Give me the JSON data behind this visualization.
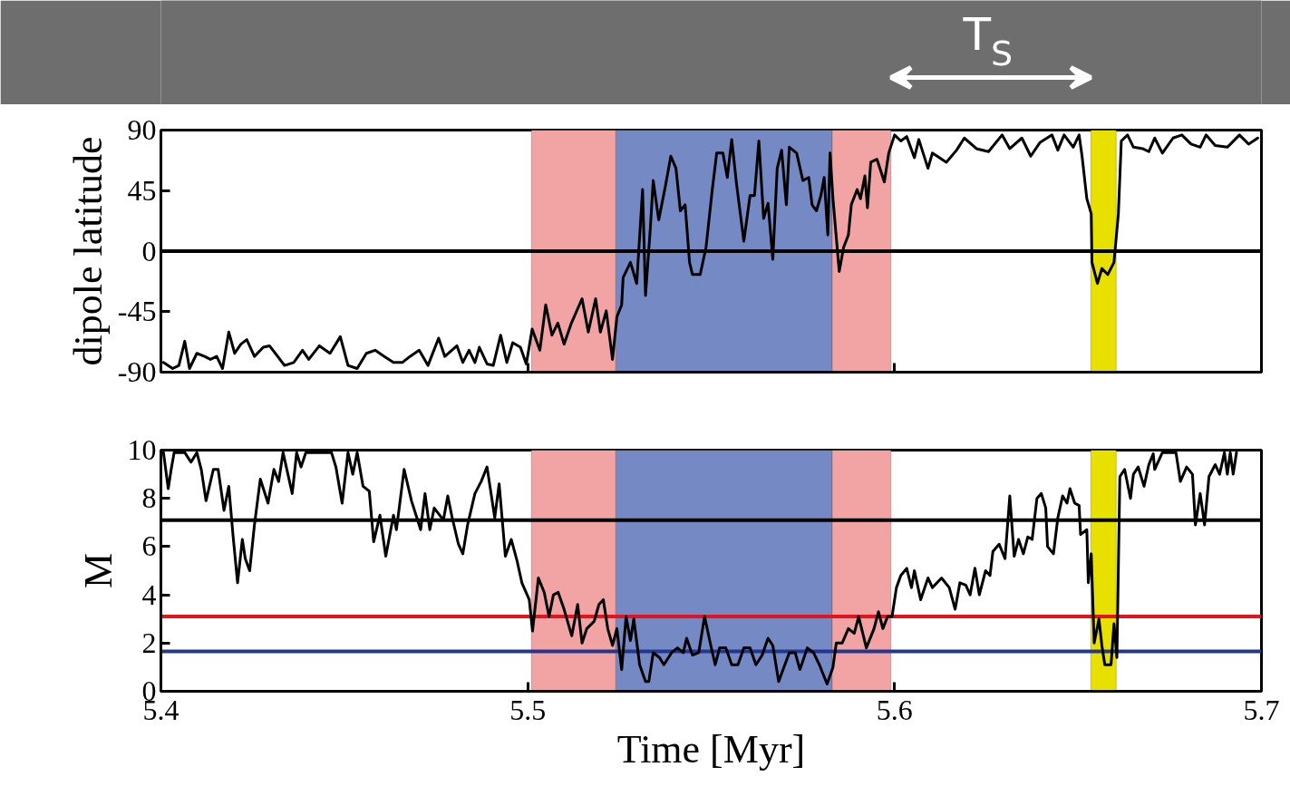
{
  "chart_data": [
    {
      "type": "line",
      "ylabel": "dipole latitude",
      "xlim": [
        5.4,
        5.7
      ],
      "xticks": [
        5.4,
        5.5,
        5.6,
        5.7
      ],
      "ylim": [
        -90,
        90
      ],
      "yticks": [
        -90,
        -45,
        0,
        45,
        90
      ],
      "tick_labels": "y",
      "grid": false,
      "annotations": [
        "T$_{S}$"
      ],
      "ref_lines": [
        {
          "axis": "y",
          "value": 0,
          "color": "#000000"
        }
      ],
      "bands": [
        {
          "axis": "x",
          "from": 5.501,
          "to": 5.524,
          "color": "#f2a3a3"
        },
        {
          "axis": "x",
          "from": 5.524,
          "to": 5.583,
          "color": "#7589c5"
        },
        {
          "axis": "x",
          "from": 5.583,
          "to": 5.599,
          "color": "#f2a3a3"
        },
        {
          "axis": "x",
          "from": 5.6535,
          "to": 5.6604,
          "color": "#e8e100"
        }
      ],
      "series": [
        {
          "color": "#000000",
          "x": [
            5.4007,
            5.4032,
            5.4049,
            5.4065,
            5.4078,
            5.4098,
            5.4119,
            5.4135,
            5.4152,
            5.4168,
            5.4185,
            5.4201,
            5.4218,
            5.4234,
            5.4255,
            5.4279,
            5.4296,
            5.4312,
            5.4337,
            5.4362,
            5.4386,
            5.4403,
            5.4432,
            5.4461,
            5.4489,
            5.451,
            5.4535,
            5.456,
            5.4584,
            5.4609,
            5.4634,
            5.4658,
            5.4679,
            5.4704,
            5.4728,
            5.4757,
            5.4774,
            5.4807,
            5.4823,
            5.484,
            5.4856,
            5.4868,
            5.4889,
            5.4906,
            5.4926,
            5.4943,
            5.4959,
            5.498,
            5.4996,
            5.5012,
            5.5033,
            5.5049,
            5.5066,
            5.5082,
            5.5099,
            5.5119,
            5.5148,
            5.5165,
            5.5185,
            5.5198,
            5.5214,
            5.5231,
            5.5243,
            5.5256,
            5.526,
            5.528,
            5.5297,
            5.5313,
            5.5321,
            5.5334,
            5.5342,
            5.5357,
            5.5375,
            5.539,
            5.5404,
            5.5416,
            5.5429,
            5.5441,
            5.5449,
            5.547,
            5.5486,
            5.5503,
            5.5515,
            5.5532,
            5.5544,
            5.5556,
            5.5569,
            5.5589,
            5.5606,
            5.5618,
            5.563,
            5.5643,
            5.5655,
            5.5668,
            5.568,
            5.5692,
            5.5705,
            5.5713,
            5.5733,
            5.575,
            5.5766,
            5.5775,
            5.5787,
            5.5799,
            5.5808,
            5.5818,
            5.5824,
            5.5832,
            5.5849,
            5.5861,
            5.5874,
            5.5882,
            5.5898,
            5.5907,
            5.5919,
            5.5926,
            5.5935,
            5.5952,
            5.5972,
            5.5984,
            5.6,
            5.6017,
            5.6033,
            5.6054,
            5.6066,
            5.6091,
            5.6103,
            5.6141,
            5.6169,
            5.619,
            5.6223,
            5.6256,
            5.6293,
            5.6314,
            5.6347,
            5.6371,
            5.6396,
            5.6429,
            5.6445,
            5.6462,
            5.6487,
            5.6503,
            5.6511,
            5.6524,
            5.6536,
            5.6538,
            5.6553,
            5.6565,
            5.6581,
            5.6598,
            5.661,
            5.6618,
            5.6635,
            5.6651,
            5.6676,
            5.6693,
            5.6709,
            5.673,
            5.6759,
            5.6783,
            5.6808,
            5.6833,
            5.6849,
            5.6874,
            5.6907,
            5.694,
            5.6965,
            5.699
          ],
          "values": [
            -82.8,
            -87.3,
            -85,
            -67,
            -87.3,
            -76,
            -78.3,
            -80.5,
            -78.3,
            -87.3,
            -60.2,
            -76,
            -69.2,
            -65.8,
            -78.3,
            -71.5,
            -70.4,
            -76,
            -85,
            -82.8,
            -73.7,
            -80.5,
            -70.4,
            -76,
            -63.6,
            -85,
            -87.3,
            -76,
            -73.7,
            -78.3,
            -82.8,
            -82.8,
            -78.3,
            -73.7,
            -85,
            -64.7,
            -78.3,
            -70.4,
            -82.8,
            -73.7,
            -82.8,
            -71.5,
            -83.9,
            -85,
            -62.5,
            -82.8,
            -68.1,
            -71.5,
            -83.9,
            -58,
            -73.7,
            -39.9,
            -62.5,
            -53.5,
            -69.2,
            -53.5,
            -35.4,
            -60.2,
            -35.4,
            -60.2,
            -44.4,
            -80.5,
            -48.9,
            -39.9,
            -19.6,
            -8.3,
            -24.1,
            45.8,
            -33,
            16.4,
            52.5,
            23.2,
            48,
            70.6,
            61.6,
            30,
            34.5,
            -8.3,
            -17.4,
            -17.4,
            2.9,
            45.8,
            72.9,
            72.9,
            54.8,
            83,
            50.3,
            7.4,
            41.3,
            41.3,
            81.9,
            24.3,
            35.6,
            -6.1,
            61.6,
            75.1,
            34.5,
            77.3,
            72.9,
            52.5,
            54.8,
            34.5,
            30,
            41.3,
            54.8,
            12,
            72.9,
            39,
            -15.1,
            2.9,
            12,
            34.5,
            45.8,
            39,
            56,
            32.2,
            66.1,
            68.3,
            51.4,
            72.9,
            86.4,
            81.9,
            85.2,
            69.5,
            83,
            61.6,
            72.9,
            66.1,
            75.1,
            84.1,
            76.2,
            74,
            86.4,
            76.2,
            84.1,
            70.6,
            80.7,
            86.4,
            75.1,
            86.4,
            77.3,
            86.4,
            70.6,
            39,
            27.7,
            -8.3,
            -24,
            -12.9,
            -17.4,
            -8.3,
            27.7,
            81.9,
            86.4,
            77.3,
            76.2,
            74,
            84.1,
            72.9,
            84.1,
            86.4,
            79.6,
            77.3,
            86.4,
            78.5,
            77.3,
            86.4,
            79.6,
            84.1
          ]
        }
      ]
    },
    {
      "type": "line",
      "ylabel": "M",
      "xlabel": "Time [Myr]",
      "xlim": [
        5.4,
        5.7
      ],
      "xticks": [
        5.4,
        5.5,
        5.6,
        5.7
      ],
      "ylim": [
        0,
        10
      ],
      "yticks": [
        0,
        2,
        4,
        6,
        8,
        10
      ],
      "grid": false,
      "ref_lines": [
        {
          "axis": "y",
          "value": 7.1,
          "color": "#000000"
        },
        {
          "axis": "y",
          "value": 3.1,
          "color": "#e3141b"
        },
        {
          "axis": "y",
          "value": 1.65,
          "color": "#23378f"
        }
      ],
      "bands": [
        {
          "axis": "x",
          "from": 5.501,
          "to": 5.524,
          "color": "#f2a3a3"
        },
        {
          "axis": "x",
          "from": 5.524,
          "to": 5.583,
          "color": "#7589c5"
        },
        {
          "axis": "x",
          "from": 5.583,
          "to": 5.599,
          "color": "#f2a3a3"
        },
        {
          "axis": "x",
          "from": 5.6535,
          "to": 5.6604,
          "color": "#e8e100"
        }
      ],
      "series": [
        {
          "color": "#000000",
          "x": [
            5.4007,
            5.402,
            5.4028,
            5.4036,
            5.4065,
            5.4082,
            5.4098,
            5.411,
            5.4123,
            5.4143,
            5.4156,
            5.4172,
            5.4185,
            5.4197,
            5.4209,
            5.4222,
            5.423,
            5.4242,
            5.4255,
            5.4271,
            5.4292,
            5.4308,
            5.4321,
            5.4333,
            5.4358,
            5.437,
            5.4382,
            5.4395,
            5.4465,
            5.4477,
            5.4494,
            5.451,
            5.4523,
            5.4535,
            5.4551,
            5.4568,
            5.458,
            5.4597,
            5.4613,
            5.4634,
            5.4642,
            5.4663,
            5.4683,
            5.4708,
            5.472,
            5.4733,
            5.4745,
            5.477,
            5.4782,
            5.4794,
            5.4811,
            5.4823,
            5.4836,
            5.4856,
            5.4873,
            5.4889,
            5.491,
            5.4922,
            5.4939,
            5.4955,
            5.4971,
            5.4984,
            5.5004,
            5.5013,
            5.5029,
            5.5045,
            5.5058,
            5.507,
            5.5083,
            5.5099,
            5.512,
            5.5136,
            5.5148,
            5.5161,
            5.5181,
            5.5194,
            5.5206,
            5.5218,
            5.5231,
            5.5243,
            5.5256,
            5.5268,
            5.528,
            5.5289,
            5.5305,
            5.5321,
            5.533,
            5.5342,
            5.5359,
            5.5371,
            5.5392,
            5.5408,
            5.5424,
            5.5433,
            5.5449,
            5.5466,
            5.5482,
            5.5499,
            5.5511,
            5.5523,
            5.554,
            5.5556,
            5.5573,
            5.5589,
            5.5606,
            5.5622,
            5.5639,
            5.5655,
            5.5668,
            5.5684,
            5.5696,
            5.5713,
            5.5729,
            5.5742,
            5.5762,
            5.5779,
            5.5795,
            5.5816,
            5.5832,
            5.5841,
            5.5857,
            5.5874,
            5.589,
            5.5902,
            5.5923,
            5.5944,
            5.5956,
            5.5968,
            5.5981,
            5.5993,
            5.6005,
            5.6017,
            5.6033,
            5.6046,
            5.6054,
            5.6071,
            5.6091,
            5.6103,
            5.6128,
            5.6149,
            5.6165,
            5.6178,
            5.6194,
            5.6206,
            5.6219,
            5.6231,
            5.6248,
            5.626,
            5.6268,
            5.6285,
            5.6301,
            5.6314,
            5.6326,
            5.6338,
            5.6351,
            5.6363,
            5.6375,
            5.6388,
            5.64,
            5.6412,
            5.6417,
            5.6433,
            5.6445,
            5.6458,
            5.647,
            5.6478,
            5.6491,
            5.6503,
            5.6507,
            5.6524,
            5.6528,
            5.6536,
            5.6544,
            5.6557,
            5.6565,
            5.6573,
            5.659,
            5.6598,
            5.6606,
            5.6614,
            5.6627,
            5.6643,
            5.6651,
            5.6664,
            5.668,
            5.6693,
            5.6705,
            5.6709,
            5.673,
            5.6767,
            5.6779,
            5.6796,
            5.6812,
            5.682,
            5.6833,
            5.6845,
            5.6857,
            5.6874,
            5.6886,
            5.6899,
            5.6907,
            5.6915,
            5.6923,
            5.6932
          ],
          "values": [
            9.9,
            8.4,
            9.2,
            9.9,
            9.9,
            9.5,
            9.9,
            9.2,
            7.9,
            9.2,
            9.2,
            7.5,
            8.5,
            6.4,
            4.5,
            6.3,
            5.5,
            5.0,
            6.9,
            8.8,
            7.8,
            9.2,
            8.7,
            9.9,
            8.2,
            9.9,
            9.3,
            9.9,
            9.9,
            9.3,
            7.8,
            9.9,
            9.0,
            9.9,
            8.5,
            8.3,
            6.2,
            7.3,
            5.6,
            7.3,
            6.7,
            9.2,
            7.9,
            6.7,
            8.2,
            6.7,
            7.6,
            7.1,
            8.1,
            7.2,
            6.1,
            5.7,
            6.9,
            8.2,
            8.7,
            9.3,
            7.2,
            8.6,
            5.6,
            6.3,
            5.4,
            4.5,
            3.8,
            2.5,
            4.7,
            4.1,
            3.1,
            4.0,
            4.1,
            3.4,
            2.3,
            3.6,
            2.0,
            2.6,
            2.9,
            3.6,
            3.8,
            2.6,
            1.9,
            2.6,
            0.9,
            3.1,
            2.1,
            3.0,
            1.1,
            0.4,
            0.4,
            1.6,
            1.4,
            1.1,
            1.6,
            1.8,
            1.6,
            2.2,
            1.5,
            1.6,
            3.1,
            1.9,
            1.1,
            1.8,
            1.8,
            1.1,
            1.1,
            1.8,
            1.8,
            1.1,
            1.5,
            2.2,
            1.9,
            0.4,
            0.9,
            1.6,
            1.6,
            0.9,
            1.8,
            1.6,
            1.1,
            0.3,
            1.0,
            2.0,
            2.0,
            2.6,
            2.4,
            3.1,
            1.8,
            2.6,
            3.3,
            2.6,
            3.1,
            3.1,
            4.3,
            4.8,
            5.1,
            4.3,
            5.0,
            3.8,
            4.7,
            4.3,
            4.7,
            4.3,
            3.4,
            4.5,
            4.4,
            4.0,
            5.1,
            4.0,
            5.0,
            4.8,
            5.8,
            6.1,
            5.5,
            8.1,
            5.6,
            6.3,
            5.7,
            6.4,
            6.3,
            8.0,
            8.2,
            7.6,
            6.0,
            5.7,
            7.2,
            8.1,
            7.8,
            8.4,
            7.8,
            7.7,
            6.5,
            6.7,
            4.5,
            5.7,
            2.0,
            3.0,
            1.9,
            1.1,
            1.1,
            2.8,
            1.4,
            8.9,
            9.2,
            8.0,
            9.0,
            9.3,
            8.5,
            9.4,
            9.85,
            9.2,
            9.9,
            9.9,
            8.7,
            9.3,
            9.0,
            6.9,
            8.2,
            6.9,
            8.9,
            9.4,
            9.0,
            9.9,
            9.0,
            9.9,
            9.0,
            9.9
          ]
        }
      ]
    }
  ]
}
